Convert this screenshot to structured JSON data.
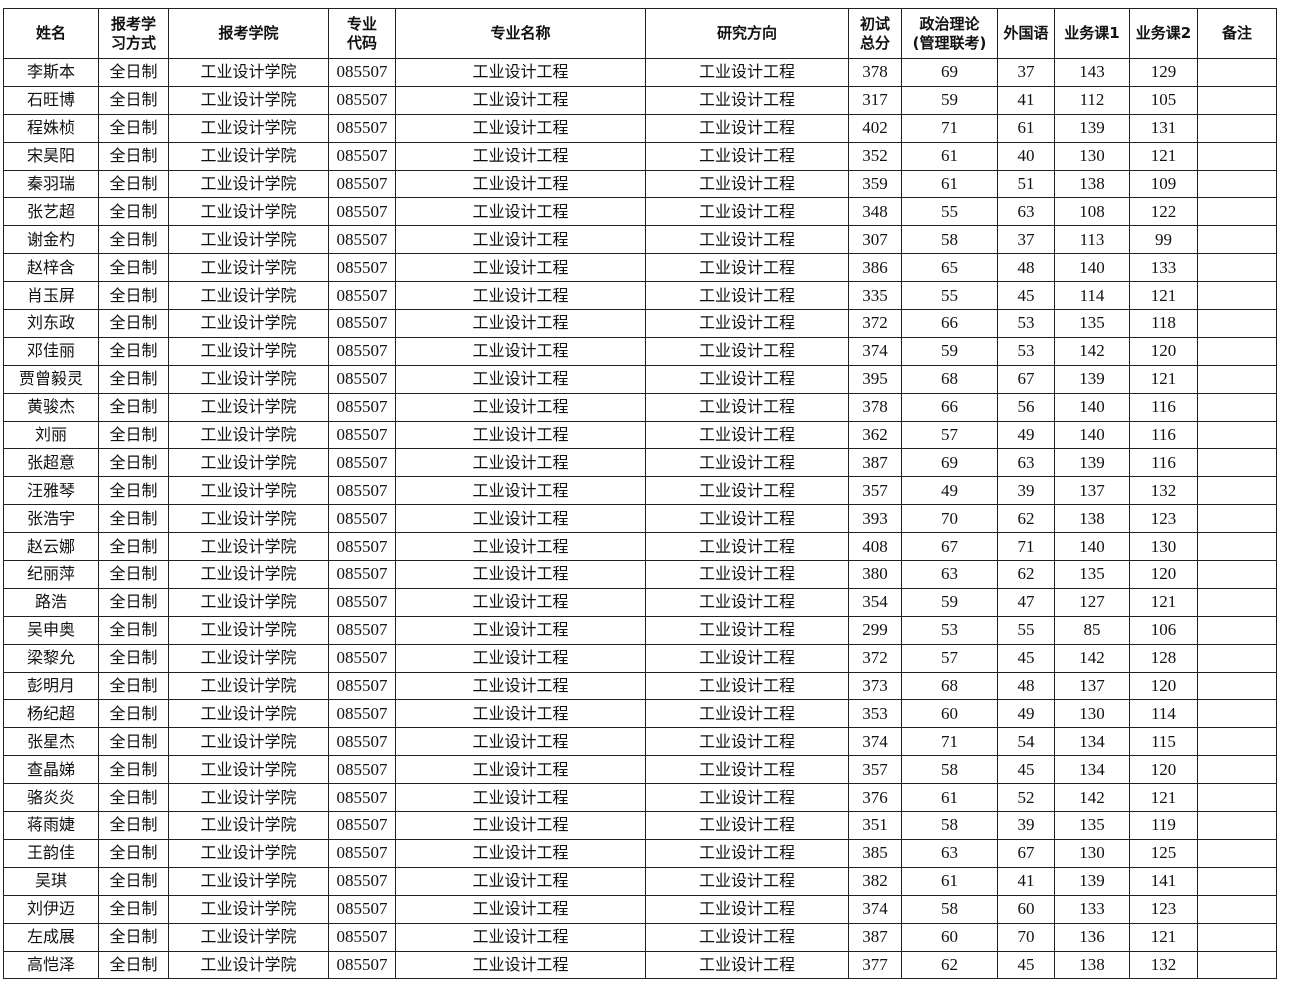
{
  "headers": [
    "姓名",
    "报考学\n习方式",
    "报考学院",
    "专业\n代码",
    "专业名称",
    "研究方向",
    "初试\n总分",
    "政治理论\n(管理联考)",
    "外国语",
    "业务课1",
    "业务课2",
    "备注"
  ],
  "rows": [
    [
      "李斯本",
      "全日制",
      "工业设计学院",
      "085507",
      "工业设计工程",
      "工业设计工程",
      "378",
      "69",
      "37",
      "143",
      "129",
      ""
    ],
    [
      "石旺博",
      "全日制",
      "工业设计学院",
      "085507",
      "工业设计工程",
      "工业设计工程",
      "317",
      "59",
      "41",
      "112",
      "105",
      ""
    ],
    [
      "程姝桢",
      "全日制",
      "工业设计学院",
      "085507",
      "工业设计工程",
      "工业设计工程",
      "402",
      "71",
      "61",
      "139",
      "131",
      ""
    ],
    [
      "宋昊阳",
      "全日制",
      "工业设计学院",
      "085507",
      "工业设计工程",
      "工业设计工程",
      "352",
      "61",
      "40",
      "130",
      "121",
      ""
    ],
    [
      "秦羽瑞",
      "全日制",
      "工业设计学院",
      "085507",
      "工业设计工程",
      "工业设计工程",
      "359",
      "61",
      "51",
      "138",
      "109",
      ""
    ],
    [
      "张艺超",
      "全日制",
      "工业设计学院",
      "085507",
      "工业设计工程",
      "工业设计工程",
      "348",
      "55",
      "63",
      "108",
      "122",
      ""
    ],
    [
      "谢金杓",
      "全日制",
      "工业设计学院",
      "085507",
      "工业设计工程",
      "工业设计工程",
      "307",
      "58",
      "37",
      "113",
      "99",
      ""
    ],
    [
      "赵梓含",
      "全日制",
      "工业设计学院",
      "085507",
      "工业设计工程",
      "工业设计工程",
      "386",
      "65",
      "48",
      "140",
      "133",
      ""
    ],
    [
      "肖玉屏",
      "全日制",
      "工业设计学院",
      "085507",
      "工业设计工程",
      "工业设计工程",
      "335",
      "55",
      "45",
      "114",
      "121",
      ""
    ],
    [
      "刘东政",
      "全日制",
      "工业设计学院",
      "085507",
      "工业设计工程",
      "工业设计工程",
      "372",
      "66",
      "53",
      "135",
      "118",
      ""
    ],
    [
      "邓佳丽",
      "全日制",
      "工业设计学院",
      "085507",
      "工业设计工程",
      "工业设计工程",
      "374",
      "59",
      "53",
      "142",
      "120",
      ""
    ],
    [
      "贾曾毅灵",
      "全日制",
      "工业设计学院",
      "085507",
      "工业设计工程",
      "工业设计工程",
      "395",
      "68",
      "67",
      "139",
      "121",
      ""
    ],
    [
      "黄骏杰",
      "全日制",
      "工业设计学院",
      "085507",
      "工业设计工程",
      "工业设计工程",
      "378",
      "66",
      "56",
      "140",
      "116",
      ""
    ],
    [
      "刘丽",
      "全日制",
      "工业设计学院",
      "085507",
      "工业设计工程",
      "工业设计工程",
      "362",
      "57",
      "49",
      "140",
      "116",
      ""
    ],
    [
      "张超意",
      "全日制",
      "工业设计学院",
      "085507",
      "工业设计工程",
      "工业设计工程",
      "387",
      "69",
      "63",
      "139",
      "116",
      ""
    ],
    [
      "汪雅琴",
      "全日制",
      "工业设计学院",
      "085507",
      "工业设计工程",
      "工业设计工程",
      "357",
      "49",
      "39",
      "137",
      "132",
      ""
    ],
    [
      "张浩宇",
      "全日制",
      "工业设计学院",
      "085507",
      "工业设计工程",
      "工业设计工程",
      "393",
      "70",
      "62",
      "138",
      "123",
      ""
    ],
    [
      "赵云娜",
      "全日制",
      "工业设计学院",
      "085507",
      "工业设计工程",
      "工业设计工程",
      "408",
      "67",
      "71",
      "140",
      "130",
      ""
    ],
    [
      "纪丽萍",
      "全日制",
      "工业设计学院",
      "085507",
      "工业设计工程",
      "工业设计工程",
      "380",
      "63",
      "62",
      "135",
      "120",
      ""
    ],
    [
      "路浩",
      "全日制",
      "工业设计学院",
      "085507",
      "工业设计工程",
      "工业设计工程",
      "354",
      "59",
      "47",
      "127",
      "121",
      ""
    ],
    [
      "吴申奥",
      "全日制",
      "工业设计学院",
      "085507",
      "工业设计工程",
      "工业设计工程",
      "299",
      "53",
      "55",
      "85",
      "106",
      ""
    ],
    [
      "梁黎允",
      "全日制",
      "工业设计学院",
      "085507",
      "工业设计工程",
      "工业设计工程",
      "372",
      "57",
      "45",
      "142",
      "128",
      ""
    ],
    [
      "彭明月",
      "全日制",
      "工业设计学院",
      "085507",
      "工业设计工程",
      "工业设计工程",
      "373",
      "68",
      "48",
      "137",
      "120",
      ""
    ],
    [
      "杨纪超",
      "全日制",
      "工业设计学院",
      "085507",
      "工业设计工程",
      "工业设计工程",
      "353",
      "60",
      "49",
      "130",
      "114",
      ""
    ],
    [
      "张星杰",
      "全日制",
      "工业设计学院",
      "085507",
      "工业设计工程",
      "工业设计工程",
      "374",
      "71",
      "54",
      "134",
      "115",
      ""
    ],
    [
      "查晶娣",
      "全日制",
      "工业设计学院",
      "085507",
      "工业设计工程",
      "工业设计工程",
      "357",
      "58",
      "45",
      "134",
      "120",
      ""
    ],
    [
      "骆炎炎",
      "全日制",
      "工业设计学院",
      "085507",
      "工业设计工程",
      "工业设计工程",
      "376",
      "61",
      "52",
      "142",
      "121",
      ""
    ],
    [
      "蒋雨婕",
      "全日制",
      "工业设计学院",
      "085507",
      "工业设计工程",
      "工业设计工程",
      "351",
      "58",
      "39",
      "135",
      "119",
      ""
    ],
    [
      "王韵佳",
      "全日制",
      "工业设计学院",
      "085507",
      "工业设计工程",
      "工业设计工程",
      "385",
      "63",
      "67",
      "130",
      "125",
      ""
    ],
    [
      "吴琪",
      "全日制",
      "工业设计学院",
      "085507",
      "工业设计工程",
      "工业设计工程",
      "382",
      "61",
      "41",
      "139",
      "141",
      ""
    ],
    [
      "刘伊迈",
      "全日制",
      "工业设计学院",
      "085507",
      "工业设计工程",
      "工业设计工程",
      "374",
      "58",
      "60",
      "133",
      "123",
      ""
    ],
    [
      "左成展",
      "全日制",
      "工业设计学院",
      "085507",
      "工业设计工程",
      "工业设计工程",
      "387",
      "60",
      "70",
      "136",
      "121",
      ""
    ],
    [
      "高恺泽",
      "全日制",
      "工业设计学院",
      "085507",
      "工业设计工程",
      "工业设计工程",
      "377",
      "62",
      "45",
      "138",
      "132",
      ""
    ]
  ]
}
